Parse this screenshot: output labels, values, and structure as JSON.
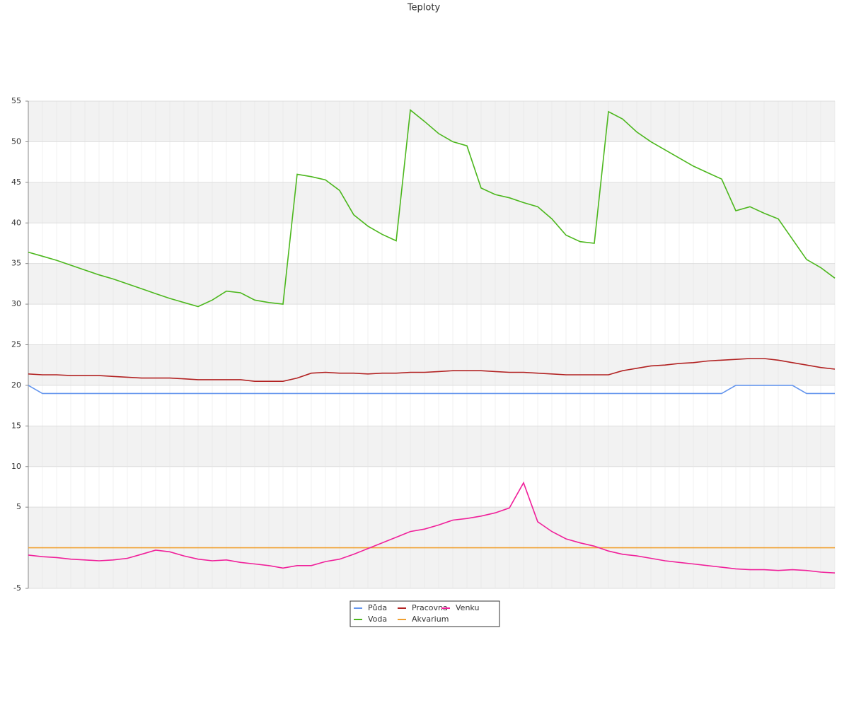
{
  "chart_data": {
    "type": "line",
    "title": "Teploty",
    "categories": [
      null,
      null,
      null,
      null,
      null,
      null,
      null,
      null,
      null,
      null,
      null,
      null,
      null,
      null,
      null,
      null,
      null,
      null,
      null,
      null,
      null,
      null,
      null,
      null,
      null,
      null,
      null,
      null,
      null,
      null,
      null,
      null,
      null,
      null,
      null,
      null,
      null,
      null,
      null,
      null,
      null,
      null,
      null,
      null,
      null,
      null,
      null,
      null,
      null,
      null,
      null,
      null,
      null,
      null,
      null,
      null,
      null,
      null
    ],
    "series": [
      {
        "name": "Půda",
        "color": "#6495ed",
        "values": [
          20,
          19,
          19,
          19,
          19,
          19,
          19,
          19,
          19,
          19,
          19,
          19,
          19,
          19,
          19,
          19,
          19,
          19,
          19,
          19,
          19,
          19,
          19,
          19,
          19,
          19,
          19,
          19,
          19,
          19,
          19,
          19,
          19,
          19,
          19,
          19,
          19,
          19,
          19,
          19,
          19,
          19,
          19,
          19,
          19,
          19,
          19,
          19,
          19,
          19,
          20,
          20,
          20,
          20,
          20,
          19,
          19,
          19
        ]
      },
      {
        "name": "Voda",
        "color": "#4cb71d",
        "values": [
          36.4,
          35.9,
          35.4,
          34.8,
          34.2,
          33.6,
          33.1,
          32.5,
          31.9,
          31.3,
          30.7,
          30.2,
          29.7,
          30.5,
          31.6,
          31.4,
          30.5,
          30.2,
          30.0,
          46.0,
          45.7,
          45.3,
          44.0,
          41.0,
          39.6,
          38.6,
          37.8,
          53.9,
          52.5,
          51.0,
          50.0,
          49.5,
          44.3,
          43.5,
          43.1,
          42.5,
          42.0,
          40.5,
          38.5,
          37.7,
          37.5,
          53.7,
          52.8,
          51.2,
          50.0,
          49.0,
          48.0,
          47.0,
          46.2,
          45.4,
          41.5,
          42.0,
          41.2,
          40.5,
          38.0,
          35.5,
          34.5,
          33.2
        ]
      },
      {
        "name": "Pracovna",
        "color": "#b22222",
        "values": [
          21.4,
          21.3,
          21.3,
          21.2,
          21.2,
          21.2,
          21.1,
          21.0,
          20.9,
          20.9,
          20.9,
          20.8,
          20.7,
          20.7,
          20.7,
          20.7,
          20.5,
          20.5,
          20.5,
          20.9,
          21.5,
          21.6,
          21.5,
          21.5,
          21.4,
          21.5,
          21.5,
          21.6,
          21.6,
          21.7,
          21.8,
          21.8,
          21.8,
          21.7,
          21.6,
          21.6,
          21.5,
          21.4,
          21.3,
          21.3,
          21.3,
          21.3,
          21.8,
          22.1,
          22.4,
          22.5,
          22.7,
          22.8,
          23.0,
          23.1,
          23.2,
          23.3,
          23.3,
          23.1,
          22.8,
          22.5,
          22.2,
          22.0
        ]
      },
      {
        "name": "Akvarium",
        "color": "#f0a030",
        "values": [
          0,
          0,
          0,
          0,
          0,
          0,
          0,
          0,
          0,
          0,
          0,
          0,
          0,
          0,
          0,
          0,
          0,
          0,
          0,
          0,
          0,
          0,
          0,
          0,
          0,
          0,
          0,
          0,
          0,
          0,
          0,
          0,
          0,
          0,
          0,
          0,
          0,
          0,
          0,
          0,
          0,
          0,
          0,
          0,
          0,
          0,
          0,
          0,
          0,
          0,
          0,
          0,
          0,
          0,
          0,
          0,
          0,
          0
        ]
      },
      {
        "name": "Venku",
        "color": "#f0209a",
        "values": [
          -0.9,
          -1.1,
          -1.2,
          -1.4,
          -1.5,
          -1.6,
          -1.5,
          -1.3,
          -0.8,
          -0.3,
          -0.5,
          -1.0,
          -1.4,
          -1.6,
          -1.5,
          -1.8,
          -2.0,
          -2.2,
          -2.5,
          -2.2,
          -2.2,
          -1.7,
          -1.4,
          -0.8,
          -0.1,
          0.6,
          1.3,
          2.0,
          2.3,
          2.8,
          3.4,
          3.6,
          3.9,
          4.3,
          4.9,
          8.0,
          3.2,
          2.0,
          1.1,
          0.6,
          0.2,
          -0.4,
          -0.8,
          -1.0,
          -1.3,
          -1.6,
          -1.8,
          -2.0,
          -2.2,
          -2.4,
          -2.6,
          -2.7,
          -2.7,
          -2.8,
          -2.7,
          -2.8,
          -3.0,
          -3.1
        ]
      }
    ],
    "ylim": [
      -5,
      55
    ],
    "yticks": [
      -5,
      5,
      10,
      15,
      20,
      25,
      30,
      35,
      40,
      45,
      50,
      55
    ],
    "grid": true
  }
}
